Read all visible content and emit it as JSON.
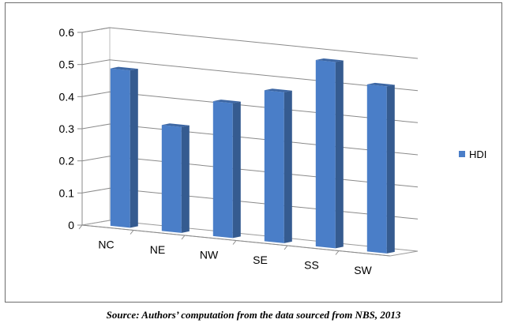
{
  "chart_data": {
    "type": "bar",
    "categories": [
      "NC",
      "NE",
      "NW",
      "SE",
      "SS",
      "SW"
    ],
    "series": [
      {
        "name": "HDI",
        "values": [
          0.49,
          0.33,
          0.42,
          0.47,
          0.58,
          0.52
        ]
      }
    ],
    "yticks": [
      "0",
      "0.1",
      "0.2",
      "0.3",
      "0.4",
      "0.5",
      "0.6"
    ],
    "ylim": [
      0,
      0.6
    ],
    "grid": true,
    "legend": "right",
    "bar_color": "#4a7ec8"
  },
  "caption": "Source: Authors’ computation from the data sourced from NBS, 2013"
}
